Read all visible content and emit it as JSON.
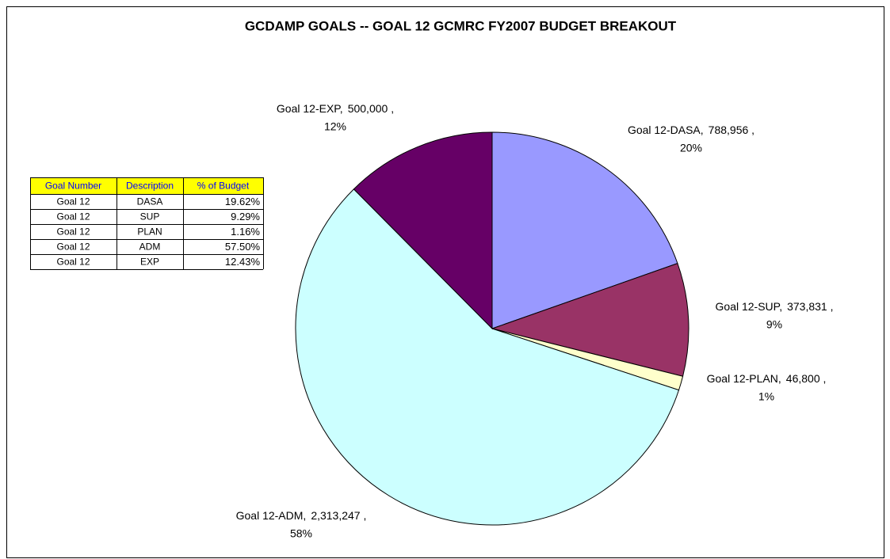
{
  "chart_data": {
    "type": "pie",
    "title": "GCDAMP GOALS -- GOAL 12 GCMRC FY2007 BUDGET BREAKOUT",
    "categories": [
      "Goal 12-DASA,",
      "Goal 12-SUP,",
      "Goal 12-PLAN,",
      "Goal 12-ADM,",
      "Goal 12-EXP,"
    ],
    "values": [
      788956,
      373831,
      46800,
      2313247,
      500000
    ],
    "value_labels": [
      "788,956 ,",
      "373,831 ,",
      "46,800 ,",
      "2,313,247 ,",
      "500,000 ,"
    ],
    "percent_labels": [
      "20%",
      "9%",
      "1%",
      "58%",
      "12%"
    ],
    "colors": [
      "#9999ff",
      "#993366",
      "#ffffcc",
      "#ccffff",
      "#660066"
    ]
  },
  "table": {
    "columns": [
      "Goal Number",
      "Description",
      "% of Budget"
    ],
    "rows": [
      [
        "Goal 12",
        "DASA",
        "19.62%"
      ],
      [
        "Goal 12",
        "SUP",
        "9.29%"
      ],
      [
        "Goal 12",
        "PLAN",
        "1.16%"
      ],
      [
        "Goal 12",
        "ADM",
        "57.50%"
      ],
      [
        "Goal 12",
        "EXP",
        "12.43%"
      ]
    ]
  }
}
